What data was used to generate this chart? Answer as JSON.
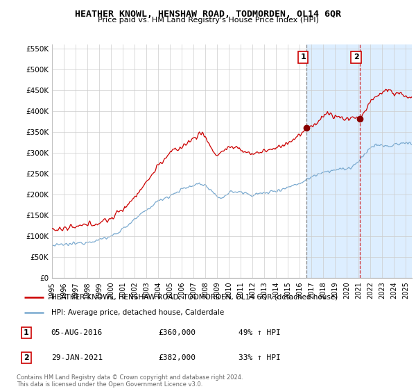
{
  "title": "HEATHER KNOWL, HENSHAW ROAD, TODMORDEN, OL14 6QR",
  "subtitle": "Price paid vs. HM Land Registry's House Price Index (HPI)",
  "ylabel_ticks": [
    "£0",
    "£50K",
    "£100K",
    "£150K",
    "£200K",
    "£250K",
    "£300K",
    "£350K",
    "£400K",
    "£450K",
    "£500K",
    "£550K"
  ],
  "ytick_values": [
    0,
    50000,
    100000,
    150000,
    200000,
    250000,
    300000,
    350000,
    400000,
    450000,
    500000,
    550000
  ],
  "legend_line1": "HEATHER KNOWL, HENSHAW ROAD, TODMORDEN, OL14 6QR (detached house)",
  "legend_line2": "HPI: Average price, detached house, Calderdale",
  "annotation1_date": "05-AUG-2016",
  "annotation1_price": "£360,000",
  "annotation1_hpi": "49% ↑ HPI",
  "annotation2_date": "29-JAN-2021",
  "annotation2_price": "£382,000",
  "annotation2_hpi": "33% ↑ HPI",
  "footer": "Contains HM Land Registry data © Crown copyright and database right 2024.\nThis data is licensed under the Open Government Licence v3.0.",
  "sale1_year": 2016.59,
  "sale1_price": 360000,
  "sale2_year": 2021.08,
  "sale2_price": 382000,
  "red_color": "#cc0000",
  "blue_color": "#7aaad0",
  "background_color": "#ffffff",
  "grid_color": "#cccccc",
  "highlight_color": "#ddeeff",
  "xmin": 1995,
  "xmax": 2025.5,
  "ymin": 0,
  "ymax": 560000
}
